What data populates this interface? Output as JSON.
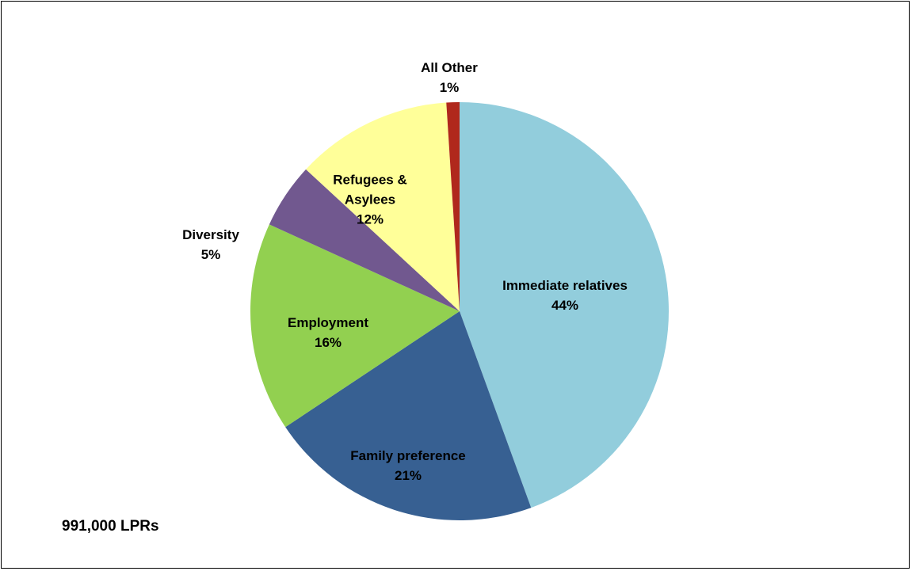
{
  "chart_data": {
    "type": "pie",
    "categories": [
      "Immediate relatives",
      "Family preference",
      "Employment",
      "Diversity",
      "Refugees & Asylees",
      "All Other"
    ],
    "values": [
      44,
      21,
      16,
      5,
      12,
      1
    ],
    "value_labels": [
      "44%",
      "21%",
      "16%",
      "5%",
      "12%",
      "1%"
    ],
    "colors": [
      "#92cddc",
      "#376092",
      "#92d050",
      "#71588f",
      "#ffff99",
      "#b0281c"
    ],
    "annotation": "991,000 LPRs"
  }
}
